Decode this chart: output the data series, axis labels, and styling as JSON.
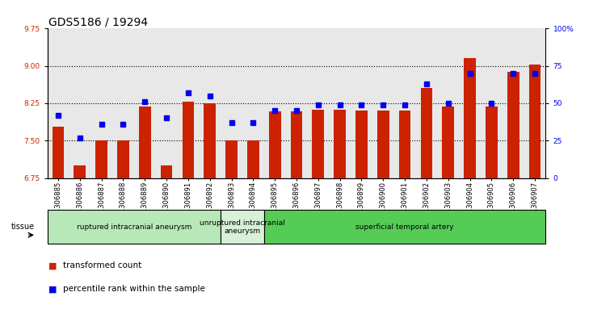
{
  "title": "GDS5186 / 19294",
  "samples": [
    "GSM1306885",
    "GSM1306886",
    "GSM1306887",
    "GSM1306888",
    "GSM1306889",
    "GSM1306890",
    "GSM1306891",
    "GSM1306892",
    "GSM1306893",
    "GSM1306894",
    "GSM1306895",
    "GSM1306896",
    "GSM1306897",
    "GSM1306898",
    "GSM1306899",
    "GSM1306900",
    "GSM1306901",
    "GSM1306902",
    "GSM1306903",
    "GSM1306904",
    "GSM1306905",
    "GSM1306906",
    "GSM1306907"
  ],
  "bar_values": [
    7.78,
    7.0,
    7.5,
    7.5,
    8.19,
    7.0,
    8.28,
    8.25,
    7.5,
    7.5,
    8.08,
    8.08,
    8.12,
    8.12,
    8.1,
    8.1,
    8.1,
    8.55,
    8.18,
    9.15,
    8.18,
    8.88,
    9.02
  ],
  "percentile_pct": [
    42,
    27,
    36,
    36,
    51,
    40,
    57,
    55,
    37,
    37,
    45,
    45,
    49,
    49,
    49,
    49,
    49,
    63,
    50,
    70,
    50,
    70,
    70
  ],
  "groups": [
    {
      "label": "ruptured intracranial aneurysm",
      "start": 0,
      "end": 8,
      "color": "#b8e8b8"
    },
    {
      "label": "unruptured intracranial\naneurysm",
      "start": 8,
      "end": 10,
      "color": "#d8f0d8"
    },
    {
      "label": "superficial temporal artery",
      "start": 10,
      "end": 23,
      "color": "#55cc55"
    }
  ],
  "ylim_left": [
    6.75,
    9.75
  ],
  "yticks_left": [
    6.75,
    7.5,
    8.25,
    9.0,
    9.75
  ],
  "ylim_right": [
    0,
    100
  ],
  "yticks_right": [
    0,
    25,
    50,
    75,
    100
  ],
  "bar_color": "#cc2200",
  "dot_color": "#0000ee",
  "bar_bottom": 6.75,
  "bg_color": "#e8e8e8",
  "title_fontsize": 10,
  "tick_fontsize": 6.5,
  "label_fontsize": 6,
  "legend_fontsize": 7.5
}
